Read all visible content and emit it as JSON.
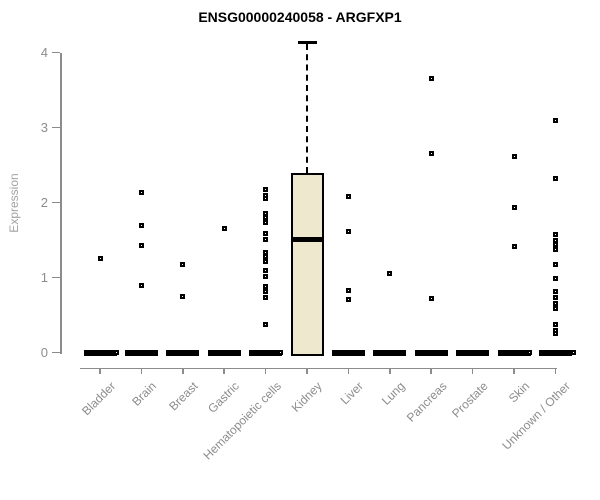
{
  "chart_data": {
    "type": "box",
    "title": "ENSG00000240058 - ARGFXP1",
    "xlabel": "",
    "ylabel": "Expression",
    "yticks": [
      0,
      1,
      2,
      3,
      4
    ],
    "ylim": [
      0,
      4.3
    ],
    "grid": false,
    "legend": "none",
    "categories": [
      "Bladder",
      "Brain",
      "Breast",
      "Gastric",
      "Hematopoietic cells",
      "Kidney",
      "Liver",
      "Lung",
      "Pancreas",
      "Prostate",
      "Skin",
      "Unknown / Other"
    ],
    "boxes": [
      {
        "category": "Bladder",
        "min": 0,
        "q1": 0,
        "median": 0,
        "q3": 0,
        "max": 0
      },
      {
        "category": "Brain",
        "min": 0,
        "q1": 0,
        "median": 0,
        "q3": 0,
        "max": 0
      },
      {
        "category": "Breast",
        "min": 0,
        "q1": 0,
        "median": 0,
        "q3": 0,
        "max": 0
      },
      {
        "category": "Gastric",
        "min": 0,
        "q1": 0,
        "median": 0,
        "q3": 0,
        "max": 0
      },
      {
        "category": "Hematopoietic cells",
        "min": 0,
        "q1": 0,
        "median": 0,
        "q3": 0,
        "max": 0
      },
      {
        "category": "Kidney",
        "min": 0,
        "q1": 0,
        "median": 1.51,
        "q3": 2.4,
        "max": 4.14
      },
      {
        "category": "Liver",
        "min": 0,
        "q1": 0,
        "median": 0,
        "q3": 0,
        "max": 0
      },
      {
        "category": "Lung",
        "min": 0,
        "q1": 0,
        "median": 0,
        "q3": 0,
        "max": 0
      },
      {
        "category": "Pancreas",
        "min": 0,
        "q1": 0,
        "median": 0,
        "q3": 0,
        "max": 0
      },
      {
        "category": "Prostate",
        "min": 0,
        "q1": 0,
        "median": 0,
        "q3": 0,
        "max": 0
      },
      {
        "category": "Skin",
        "min": 0,
        "q1": 0,
        "median": 0,
        "q3": 0,
        "max": 0
      },
      {
        "category": "Unknown / Other",
        "min": 0,
        "q1": 0,
        "median": 0,
        "q3": 0,
        "max": 0
      }
    ],
    "outliers": [
      {
        "category": "Bladder",
        "values": [
          1.25
        ]
      },
      {
        "category": "Brain",
        "values": [
          2.13,
          1.7,
          1.43,
          0.9
        ]
      },
      {
        "category": "Breast",
        "values": [
          1.17,
          0.75
        ]
      },
      {
        "category": "Gastric",
        "values": [
          1.65
        ]
      },
      {
        "category": "Hematopoietic cells",
        "values": [
          2.18,
          2.1,
          2.06,
          1.86,
          1.8,
          1.74,
          1.59,
          1.51,
          1.34,
          1.28,
          1.22,
          1.1,
          1.02,
          0.88,
          0.81,
          0.73,
          0.38
        ]
      },
      {
        "category": "Kidney",
        "values": []
      },
      {
        "category": "Liver",
        "values": [
          2.08,
          1.61,
          0.83,
          0.71
        ]
      },
      {
        "category": "Lung",
        "values": [
          1.06
        ]
      },
      {
        "category": "Pancreas",
        "values": [
          3.65,
          2.66,
          0.72
        ]
      },
      {
        "category": "Prostate",
        "values": []
      },
      {
        "category": "Skin",
        "values": [
          2.62,
          1.93,
          1.41
        ]
      },
      {
        "category": "Unknown / Other",
        "values": [
          3.09,
          2.32,
          1.58,
          1.5,
          1.44,
          1.37,
          1.17,
          0.99,
          0.82,
          0.73,
          0.66,
          0.59,
          0.37,
          0.3,
          0.26
        ]
      }
    ],
    "zero_points": [
      {
        "category": "Bladder",
        "value": 0,
        "offset": 16
      },
      {
        "category": "Hematopoietic cells",
        "value": 0,
        "offset": 15
      },
      {
        "category": "Unknown / Other",
        "value": 0,
        "offset": -26
      },
      {
        "category": "Unknown / Other",
        "value": 0,
        "offset": 18
      }
    ],
    "colors": {
      "box_fill": "#EDE8CE",
      "box_border": "#000000",
      "median": "#000000",
      "zero_bar": "#000000",
      "point": "#000000",
      "axis": "#8c8c8c",
      "tick_label": "#8c8c8c",
      "ylabel": "#a3a3a3",
      "title": "#000000",
      "background": "#ffffff"
    }
  }
}
